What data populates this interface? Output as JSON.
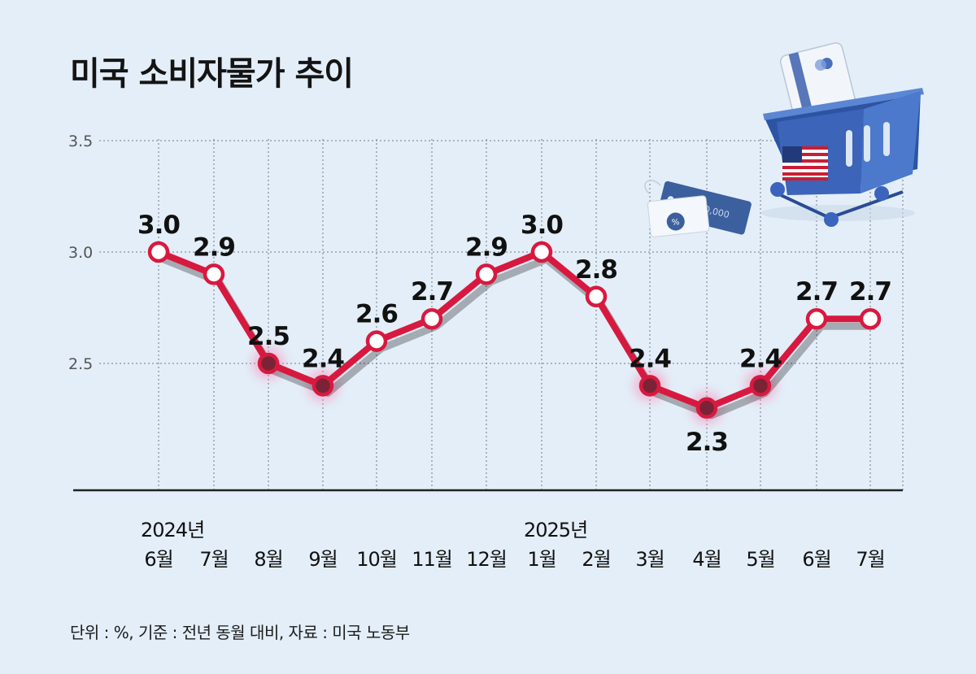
{
  "title": "미국 소비자물가 추이",
  "footnote": "단위 : %, 기준 : 전년 동월 대비, 자료 : 미국 노동부",
  "chart_data": {
    "type": "line",
    "title": "미국 소비자물가 추이",
    "categories": [
      "6월",
      "7월",
      "8월",
      "9월",
      "10월",
      "11월",
      "12월",
      "1월",
      "2월",
      "3월",
      "4월",
      "5월",
      "6월",
      "7월"
    ],
    "year_labels": [
      {
        "index": 0,
        "label": "2024년"
      },
      {
        "index": 7,
        "label": "2025년"
      }
    ],
    "series": [
      {
        "values": [
          3.0,
          2.9,
          2.5,
          2.4,
          2.6,
          2.7,
          2.9,
          3.0,
          2.8,
          2.4,
          2.3,
          2.4,
          2.7,
          2.7
        ]
      }
    ],
    "data_labels": [
      "3.0",
      "2.9",
      "2.5",
      "2.4",
      "2.6",
      "2.7",
      "2.9",
      "3.0",
      "2.8",
      "2.4",
      "2.3",
      "2.4",
      "2.7",
      "2.7"
    ],
    "y_ticks": [
      "2.5",
      "3.0",
      "3.5"
    ],
    "ylim": [
      2.0,
      3.5
    ],
    "grid": true,
    "line_color": "#d8193f",
    "marker_fill": "#ffffff",
    "dim_marker_fill": "#7a2336"
  }
}
